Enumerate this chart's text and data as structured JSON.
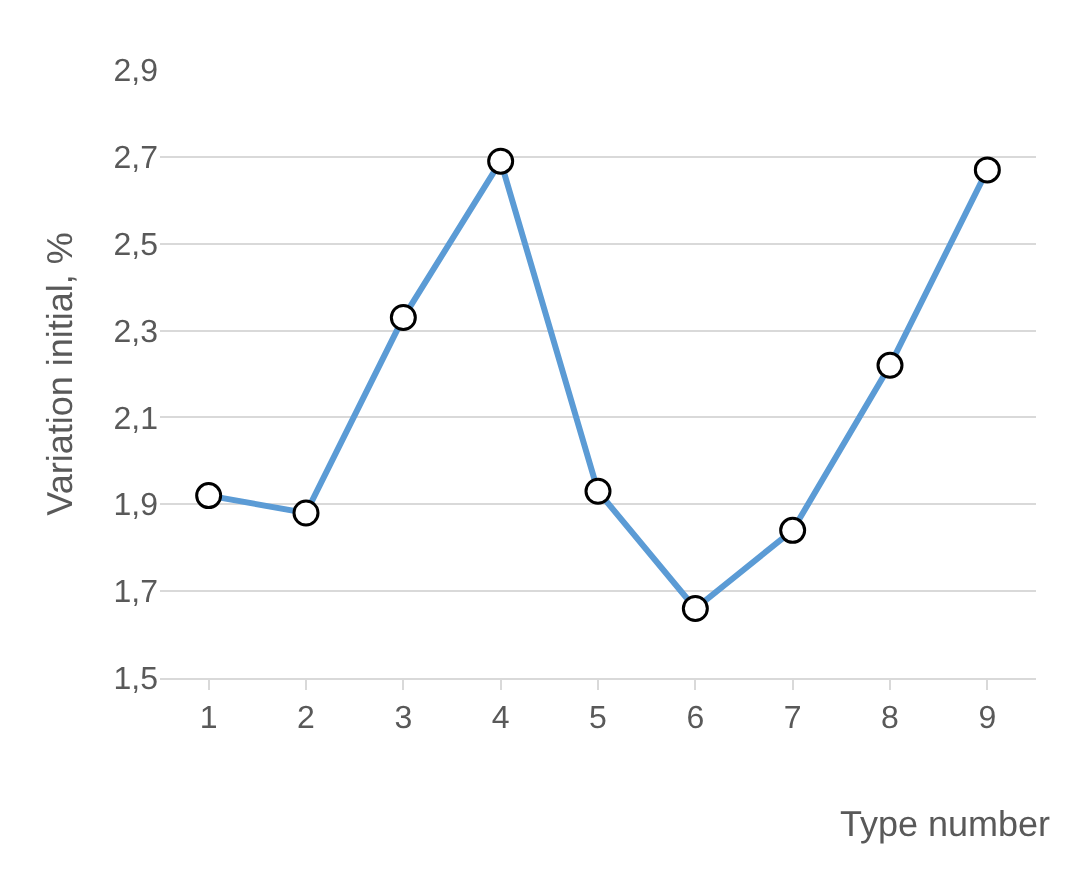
{
  "chart_data": {
    "type": "line",
    "ylabel": "Variation initial, %",
    "xlabel": "Type number",
    "categories": [
      "1",
      "2",
      "3",
      "4",
      "5",
      "6",
      "7",
      "8",
      "9"
    ],
    "series": [
      {
        "color": "#5b9bd5",
        "values": [
          1.92,
          1.88,
          2.33,
          2.69,
          1.93,
          1.66,
          1.84,
          2.22,
          2.67
        ]
      }
    ],
    "ylim": [
      1.5,
      2.9
    ],
    "yticks": [
      {
        "value": 1.5,
        "label": "1,5"
      },
      {
        "value": 1.7,
        "label": "1,7"
      },
      {
        "value": 1.9,
        "label": "1,9"
      },
      {
        "value": 2.1,
        "label": "2,1"
      },
      {
        "value": 2.3,
        "label": "2,3"
      },
      {
        "value": 2.5,
        "label": "2,5"
      },
      {
        "value": 2.7,
        "label": "2,7"
      },
      {
        "value": 2.9,
        "label": "2,9"
      }
    ],
    "grid": "y",
    "marker": "circle",
    "line_style": "solid",
    "legend": false
  }
}
